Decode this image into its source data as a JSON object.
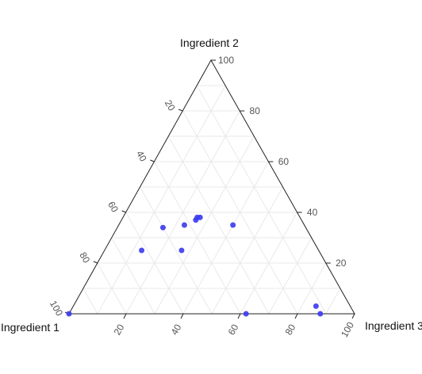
{
  "chart_data": {
    "type": "scatter",
    "subtype": "ternary",
    "title": "",
    "vertex_labels": {
      "bottom_left": "Ingredient 1",
      "top": "Ingredient 2",
      "bottom_right": "Ingredient 3"
    },
    "tick_values": [
      20,
      40,
      60,
      80,
      100
    ],
    "tick_labels": {
      "left_edge": [
        "20",
        "40",
        "60",
        "80",
        "100"
      ],
      "right_edge": [
        "20",
        "40",
        "60",
        "80",
        "100"
      ],
      "bottom_edge": [
        "20",
        "40",
        "60",
        "80",
        "100"
      ]
    },
    "grid": true,
    "marker_color": "#3a3aee",
    "points": [
      {
        "a": 100,
        "b": 0,
        "c": 0
      },
      {
        "a": 12,
        "b": 0,
        "c": 88
      },
      {
        "a": 12,
        "b": 3,
        "c": 85
      },
      {
        "a": 38,
        "b": 0,
        "c": 62
      },
      {
        "a": 62,
        "b": 25,
        "c": 13
      },
      {
        "a": 48,
        "b": 25,
        "c": 27
      },
      {
        "a": 50,
        "b": 34,
        "c": 16
      },
      {
        "a": 42,
        "b": 35,
        "c": 23
      },
      {
        "a": 37,
        "b": 37,
        "c": 26
      },
      {
        "a": 35,
        "b": 38,
        "c": 27
      },
      {
        "a": 36,
        "b": 38,
        "c": 26
      },
      {
        "a": 25,
        "b": 35,
        "c": 40
      }
    ]
  }
}
